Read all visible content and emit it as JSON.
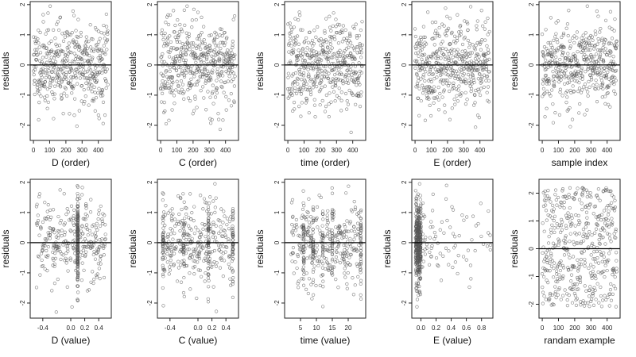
{
  "chart_data": [
    {
      "type": "scatter",
      "xlabel": "D (order)",
      "ylabel": "residuals",
      "xlim": [
        -20,
        480
      ],
      "ylim": [
        -2.5,
        2.1
      ],
      "xticks": [
        0,
        100,
        200,
        300,
        400
      ],
      "xtick_labels": [
        "0",
        "100",
        "200",
        "300",
        "400"
      ],
      "yticks": [
        -2,
        -1,
        0,
        1,
        2
      ],
      "ytick_labels": [
        "-2",
        "-1",
        "0",
        "1",
        "2"
      ],
      "reference_line_y": 0,
      "n_points": 460,
      "x_pattern": "index",
      "y_sd": 0.72,
      "seed": 11
    },
    {
      "type": "scatter",
      "xlabel": "C (order)",
      "ylabel": "residuals",
      "xlim": [
        -20,
        480
      ],
      "ylim": [
        -2.5,
        2.1
      ],
      "xticks": [
        0,
        100,
        200,
        300,
        400
      ],
      "xtick_labels": [
        "0",
        "100",
        "200",
        "300",
        "400"
      ],
      "yticks": [
        -2,
        -1,
        0,
        1,
        2
      ],
      "ytick_labels": [
        "-2",
        "-1",
        "0",
        "1",
        "2"
      ],
      "reference_line_y": 0,
      "n_points": 460,
      "x_pattern": "index",
      "y_sd": 0.72,
      "seed": 23
    },
    {
      "type": "scatter",
      "xlabel": "time (order)",
      "ylabel": "residuals",
      "xlim": [
        -20,
        480
      ],
      "ylim": [
        -2.5,
        2.1
      ],
      "xticks": [
        0,
        100,
        200,
        300,
        400
      ],
      "xtick_labels": [
        "0",
        "100",
        "200",
        "300",
        "400"
      ],
      "yticks": [
        -2,
        -1,
        0,
        1,
        2
      ],
      "ytick_labels": [
        "-2",
        "-1",
        "0",
        "1",
        "2"
      ],
      "reference_line_y": 0,
      "n_points": 460,
      "x_pattern": "index",
      "y_sd": 0.72,
      "seed": 37
    },
    {
      "type": "scatter",
      "xlabel": "E (order)",
      "ylabel": "residuals",
      "xlim": [
        -20,
        480
      ],
      "ylim": [
        -2.5,
        2.1
      ],
      "xticks": [
        0,
        100,
        200,
        300,
        400
      ],
      "xtick_labels": [
        "0",
        "100",
        "200",
        "300",
        "400"
      ],
      "yticks": [
        -2,
        -1,
        0,
        1,
        2
      ],
      "ytick_labels": [
        "-2",
        "-1",
        "0",
        "1",
        "2"
      ],
      "reference_line_y": 0,
      "n_points": 460,
      "x_pattern": "index",
      "y_sd": 0.72,
      "seed": 41
    },
    {
      "type": "scatter",
      "xlabel": "sample index",
      "ylabel": "residuals",
      "xlim": [
        -20,
        480
      ],
      "ylim": [
        -2.5,
        2.1
      ],
      "xticks": [
        0,
        100,
        200,
        300,
        400
      ],
      "xtick_labels": [
        "0",
        "100",
        "200",
        "300",
        "400"
      ],
      "yticks": [
        -2,
        -1,
        0,
        1,
        2
      ],
      "ytick_labels": [
        "-2",
        "-1",
        "0",
        "1",
        "2"
      ],
      "reference_line_y": 0,
      "n_points": 460,
      "x_pattern": "index",
      "y_sd": 0.72,
      "seed": 53
    },
    {
      "type": "scatter",
      "xlabel": "D (value)",
      "ylabel": "residuals",
      "xlim": [
        -0.58,
        0.58
      ],
      "ylim": [
        -2.5,
        2.1
      ],
      "xticks": [
        -0.4,
        0.0,
        0.2,
        0.4
      ],
      "xtick_labels": [
        "-0.4",
        "0.0",
        "0.2",
        "0.4"
      ],
      "yticks": [
        -2,
        -1,
        0,
        1,
        2
      ],
      "ytick_labels": [
        "-2",
        "-1",
        "0",
        "1",
        "2"
      ],
      "reference_line_y": 0,
      "n_points": 460,
      "x_pattern": "uniform_with_clusters",
      "x_range": [
        -0.5,
        0.5
      ],
      "x_clusters": [
        0.1
      ],
      "y_sd": 0.72,
      "seed": 61
    },
    {
      "type": "scatter",
      "xlabel": "C (value)",
      "ylabel": "residuals",
      "xlim": [
        -0.58,
        0.58
      ],
      "ylim": [
        -2.5,
        2.1
      ],
      "xticks": [
        -0.4,
        0.0,
        0.2,
        0.4
      ],
      "xtick_labels": [
        "-0.4",
        "0.0",
        "0.2",
        "0.4"
      ],
      "yticks": [
        -2,
        -1,
        0,
        1,
        2
      ],
      "ytick_labels": [
        "-2",
        "-1",
        "0",
        "1",
        "2"
      ],
      "reference_line_y": 0,
      "n_points": 460,
      "x_pattern": "uniform_with_clusters",
      "x_range": [
        -0.5,
        0.5
      ],
      "x_clusters": [
        -0.5,
        -0.2,
        0.15,
        0.5
      ],
      "y_sd": 0.72,
      "seed": 71
    },
    {
      "type": "scatter",
      "xlabel": "time (value)",
      "ylabel": "residuals",
      "xlim": [
        0,
        25.5
      ],
      "ylim": [
        -2.5,
        2.1
      ],
      "xticks": [
        5,
        10,
        15,
        20
      ],
      "xtick_labels": [
        "5",
        "10",
        "15",
        "20"
      ],
      "yticks": [
        -2,
        -1,
        0,
        1,
        2
      ],
      "ytick_labels": [
        "-2",
        "-1",
        "0",
        "1",
        "2"
      ],
      "reference_line_y": 0,
      "n_points": 460,
      "x_pattern": "uniform_with_clusters",
      "x_range": [
        2,
        24
      ],
      "x_clusters": [
        6,
        9,
        12,
        15,
        24
      ],
      "y_sd": 0.72,
      "seed": 83
    },
    {
      "type": "scatter",
      "xlabel": "E (value)",
      "ylabel": "residuals",
      "xlim": [
        -0.12,
        0.95
      ],
      "ylim": [
        -2.5,
        2.1
      ],
      "xticks": [
        0.0,
        0.2,
        0.4,
        0.6,
        0.8
      ],
      "xtick_labels": [
        "0.0",
        "0.2",
        "0.4",
        "0.6",
        "0.8"
      ],
      "yticks": [
        -2,
        -1,
        0,
        1,
        2
      ],
      "ytick_labels": [
        "-2",
        "-1",
        "0",
        "1",
        "2"
      ],
      "reference_line_y": 0,
      "n_points": 460,
      "x_pattern": "skewed_near_zero",
      "x_range": [
        -0.07,
        0.92
      ],
      "y_sd": 0.72,
      "seed": 97
    },
    {
      "type": "scatter",
      "xlabel": "randam example",
      "ylabel": "residuals",
      "xlim": [
        -20,
        480
      ],
      "ylim": [
        -2.5,
        2.5
      ],
      "xticks": [
        0,
        100,
        200,
        300,
        400
      ],
      "xtick_labels": [
        "0",
        "100",
        "200",
        "300",
        "400"
      ],
      "yticks": [
        -2,
        -1,
        0,
        1,
        2
      ],
      "ytick_labels": [
        "-2",
        "-1",
        "0",
        "1",
        "2"
      ],
      "reference_line_y": 0,
      "n_points": 460,
      "x_pattern": "index",
      "y_distribution": "uniform",
      "y_range": [
        -2.1,
        2.2
      ],
      "seed": 109
    }
  ]
}
